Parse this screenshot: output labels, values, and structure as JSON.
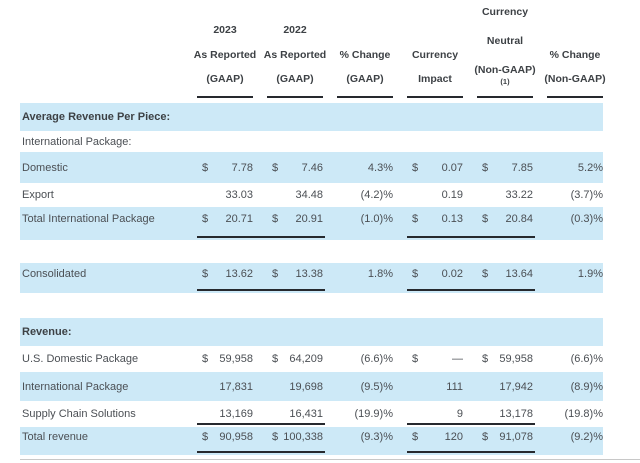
{
  "colors": {
    "row_highlight": "#cde9f7",
    "rule_dark": "#26292e",
    "text": "#4b4f54",
    "header_text": "#3d4145",
    "bottom_border": "#c8c8c8"
  },
  "header": {
    "c1": {
      "year": "2023",
      "l2": "As Reported",
      "l3": "(GAAP)"
    },
    "c2": {
      "year": "2022",
      "l2": "As Reported",
      "l3": "(GAAP)"
    },
    "c3": {
      "l2": "% Change",
      "l3": "(GAAP)"
    },
    "c4": {
      "l2": "Currency",
      "l3": "Impact"
    },
    "c5": {
      "l1": "Currency",
      "l2": "Neutral",
      "l3": "(Non-GAAP)",
      "footnote": "(1)"
    },
    "c6": {
      "l2": "% Change",
      "l3": "(Non-GAAP)"
    }
  },
  "rows": [
    {
      "label": "Average Revenue Per Piece:"
    },
    {
      "label": "International Package:"
    },
    {
      "label": "Domestic",
      "c1s": "$",
      "c1": "7.78",
      "c2s": "$",
      "c2": "7.46",
      "c3": "4.3%",
      "c4s": "$",
      "c4": "0.07",
      "c5s": "$",
      "c5": "7.85",
      "c6": "5.2%"
    },
    {
      "label": "Export",
      "c1": "33.03",
      "c2": "34.48",
      "c3": "(4.2)%",
      "c4": "0.19",
      "c5": "33.22",
      "c6": "(3.7)%"
    },
    {
      "label": "Total International Package",
      "c1s": "$",
      "c1": "20.71",
      "c2s": "$",
      "c2": "20.91",
      "c3": "(1.0)%",
      "c4s": "$",
      "c4": "0.13",
      "c5s": "$",
      "c5": "20.84",
      "c6": "(0.3)%"
    },
    {
      "label": "Consolidated",
      "c1s": "$",
      "c1": "13.62",
      "c2s": "$",
      "c2": "13.38",
      "c3": "1.8%",
      "c4s": "$",
      "c4": "0.02",
      "c5s": "$",
      "c5": "13.64",
      "c6": "1.9%"
    },
    {
      "label": "Revenue:"
    },
    {
      "label": "U.S. Domestic Package",
      "c1s": "$",
      "c1": "59,958",
      "c2s": "$",
      "c2": "64,209",
      "c3": "(6.6)%",
      "c4s": "$",
      "c4": "—",
      "c5s": "$",
      "c5": "59,958",
      "c6": "(6.6)%"
    },
    {
      "label": "International Package",
      "c1": "17,831",
      "c2": "19,698",
      "c3": "(9.5)%",
      "c4": "111",
      "c5": "17,942",
      "c6": "(8.9)%"
    },
    {
      "label": "Supply Chain Solutions",
      "c1": "13,169",
      "c2": "16,431",
      "c3": "(19.9)%",
      "c4": "9",
      "c5": "13,178",
      "c6": "(19.8)%"
    },
    {
      "label": "Total revenue",
      "c1s": "$",
      "c1": "90,958",
      "c2s": "$",
      "c2": "100,338",
      "c3": "(9.3)%",
      "c4s": "$",
      "c4": "120",
      "c5s": "$",
      "c5": "91,078",
      "c6": "(9.2)%"
    }
  ]
}
